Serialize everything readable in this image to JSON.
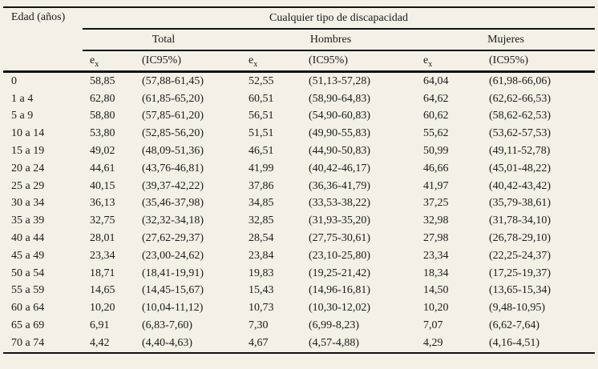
{
  "colors": {
    "background": "#f4f0e5",
    "text": "#1b1b1b",
    "rule": "#111111"
  },
  "table": {
    "age_header": "Edad (años)",
    "span_header": "Cualquier tipo de discapacidad",
    "groups": [
      "Total",
      "Hombres",
      "Mujeres"
    ],
    "metric_base": "e",
    "metric_sub": "x",
    "ci_label": "(IC95%)",
    "rows": [
      {
        "age": "0",
        "total_ex": "58,85",
        "total_ci": "(57,88-61,45)",
        "hombres_ex": "52,55",
        "hombres_ci": "(51,13-57,28)",
        "mujeres_ex": "64,04",
        "mujeres_ci": "(61,98-66,06)"
      },
      {
        "age": "1 a 4",
        "total_ex": "62,80",
        "total_ci": "(61,85-65,20)",
        "hombres_ex": "60,51",
        "hombres_ci": "(58,90-64,83)",
        "mujeres_ex": "64,62",
        "mujeres_ci": "(62,62-66,53)"
      },
      {
        "age": "5 a 9",
        "total_ex": "58,80",
        "total_ci": "(57,85-61,20)",
        "hombres_ex": "56,51",
        "hombres_ci": "(54,90-60,83)",
        "mujeres_ex": "60,62",
        "mujeres_ci": "(58,62-62,53)"
      },
      {
        "age": "10 a 14",
        "total_ex": "53,80",
        "total_ci": "(52,85-56,20)",
        "hombres_ex": "51,51",
        "hombres_ci": "(49,90-55,83)",
        "mujeres_ex": "55,62",
        "mujeres_ci": "(53,62-57,53)"
      },
      {
        "age": "15 a 19",
        "total_ex": "49,02",
        "total_ci": "(48,09-51,36)",
        "hombres_ex": "46,51",
        "hombres_ci": "(44,90-50,83)",
        "mujeres_ex": "50,99",
        "mujeres_ci": "(49,11-52,78)"
      },
      {
        "age": "20 a 24",
        "total_ex": "44,61",
        "total_ci": "(43,76-46,81)",
        "hombres_ex": "41,99",
        "hombres_ci": "(40,42-46,17)",
        "mujeres_ex": "46,66",
        "mujeres_ci": "(45,01-48,22)"
      },
      {
        "age": "25 a 29",
        "total_ex": "40,15",
        "total_ci": "(39,37-42,22)",
        "hombres_ex": "37,86",
        "hombres_ci": "(36,36-41,79)",
        "mujeres_ex": "41,97",
        "mujeres_ci": "(40,42-43,42)"
      },
      {
        "age": "30 a 34",
        "total_ex": "36,13",
        "total_ci": "(35,46-37,98)",
        "hombres_ex": "34,85",
        "hombres_ci": "(33,53-38,22)",
        "mujeres_ex": "37,25",
        "mujeres_ci": "(35,79-38,61)"
      },
      {
        "age": "35 a 39",
        "total_ex": "32,75",
        "total_ci": "(32,32-34,18)",
        "hombres_ex": "32,85",
        "hombres_ci": "(31,93-35,20)",
        "mujeres_ex": "32,98",
        "mujeres_ci": "(31,78-34,10)"
      },
      {
        "age": "40 a 44",
        "total_ex": "28,01",
        "total_ci": "(27,62-29,37)",
        "hombres_ex": "28,54",
        "hombres_ci": "(27,75-30,61)",
        "mujeres_ex": "27,98",
        "mujeres_ci": "(26,78-29,10)"
      },
      {
        "age": "45 a 49",
        "total_ex": "23,34",
        "total_ci": "(23,00-24,62)",
        "hombres_ex": "23,84",
        "hombres_ci": "(23,10-25,80)",
        "mujeres_ex": "23,34",
        "mujeres_ci": "(22,25-24,37)"
      },
      {
        "age": "50 a 54",
        "total_ex": "18,71",
        "total_ci": "(18,41-19,91)",
        "hombres_ex": "19,83",
        "hombres_ci": "(19,25-21,42)",
        "mujeres_ex": "18,34",
        "mujeres_ci": "(17,25-19,37)"
      },
      {
        "age": "55 a 59",
        "total_ex": "14,65",
        "total_ci": "(14,45-15,67)",
        "hombres_ex": "15,43",
        "hombres_ci": "(14,96-16,81)",
        "mujeres_ex": "14,50",
        "mujeres_ci": "(13,65-15,34)"
      },
      {
        "age": "60 a 64",
        "total_ex": "10,20",
        "total_ci": "(10,04-11,12)",
        "hombres_ex": "10,73",
        "hombres_ci": "(10,30-12,02)",
        "mujeres_ex": "10,20",
        "mujeres_ci": "(9,48-10,95)"
      },
      {
        "age": "65 a 69",
        "total_ex": "6,91",
        "total_ci": "(6,83-7,60)",
        "hombres_ex": "7,30",
        "hombres_ci": "(6,99-8,23)",
        "mujeres_ex": "7,07",
        "mujeres_ci": "(6,62-7,64)"
      },
      {
        "age": "70 a 74",
        "total_ex": "4,42",
        "total_ci": "(4,40-4,63)",
        "hombres_ex": "4,67",
        "hombres_ci": "(4,57-4,88)",
        "mujeres_ex": "4,29",
        "mujeres_ci": "(4,16-4,51)"
      }
    ]
  }
}
